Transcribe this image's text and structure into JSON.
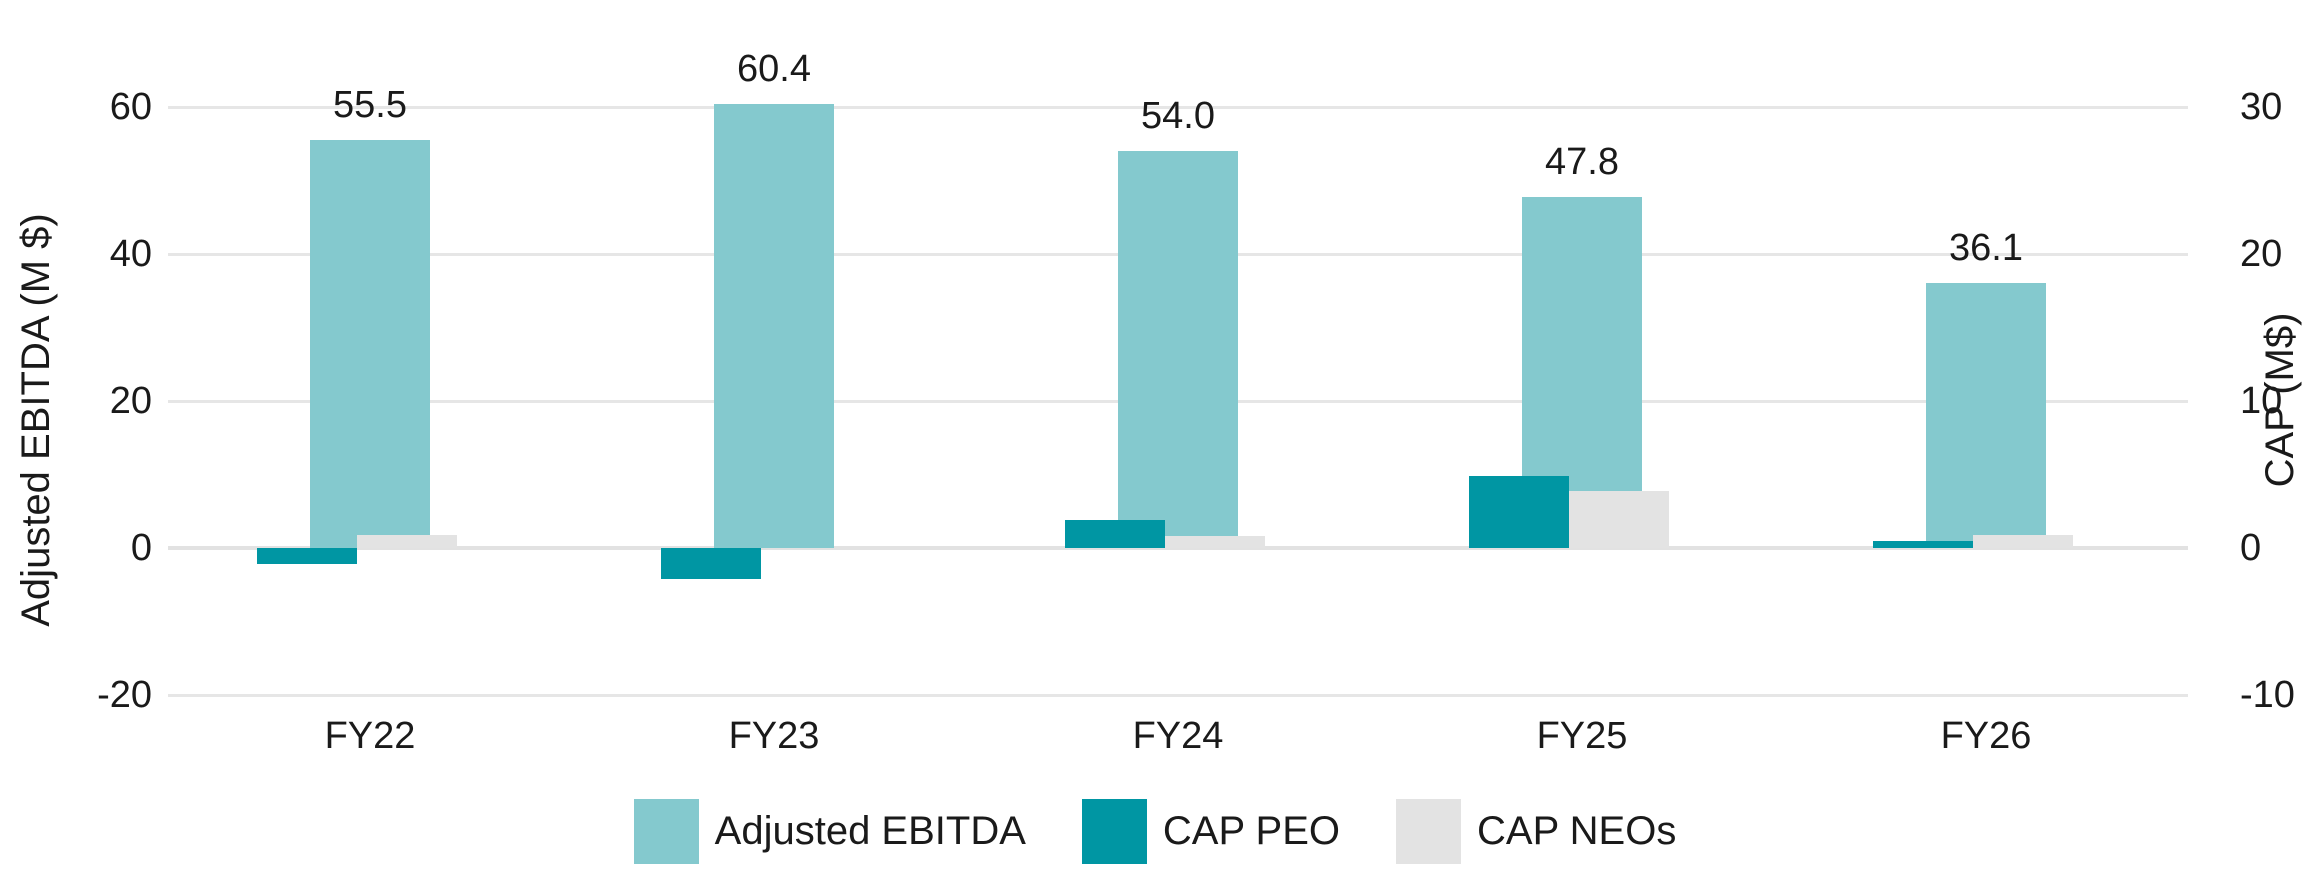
{
  "chart_data": {
    "type": "bar",
    "categories": [
      "FY22",
      "FY23",
      "FY24",
      "FY25",
      "FY26"
    ],
    "series": [
      {
        "name": "Adjusted EBITDA",
        "axis": "left",
        "color": "#84c9ce",
        "values": [
          55.5,
          60.4,
          54.0,
          47.8,
          36.1
        ],
        "labels": [
          "55.5",
          "60.4",
          "54.0",
          "47.8",
          "36.1"
        ]
      },
      {
        "name": "CAP PEO",
        "axis": "right",
        "color": "#0096a3",
        "values": [
          -1.1,
          -2.1,
          1.9,
          4.9,
          0.5
        ]
      },
      {
        "name": "CAP NEOs",
        "axis": "right",
        "color": "#e3e3e3",
        "values": [
          0.9,
          0,
          0.8,
          3.9,
          0.9
        ]
      }
    ],
    "title": "",
    "xlabel": "",
    "ylabel_left": "Adjusted EBITDA (M $)",
    "ylabel_right": "CAP (M$)",
    "left_axis": {
      "ticks": [
        60,
        40,
        20,
        0,
        -20
      ],
      "range": [
        -20,
        60
      ]
    },
    "right_axis": {
      "ticks": [
        30,
        20,
        10,
        0,
        -10
      ],
      "range": [
        -10,
        30
      ]
    },
    "grid": "horizontal-only",
    "legend_position": "bottom-center"
  },
  "colors": {
    "adjusted_ebitda": "#84c9ce",
    "cap_peo": "#0096a3",
    "cap_neos": "#e3e3e3",
    "gridline": "#e6e6e6",
    "zero_line": "#e2e2e2",
    "text": "#1a1a1a",
    "background": "#ffffff"
  }
}
